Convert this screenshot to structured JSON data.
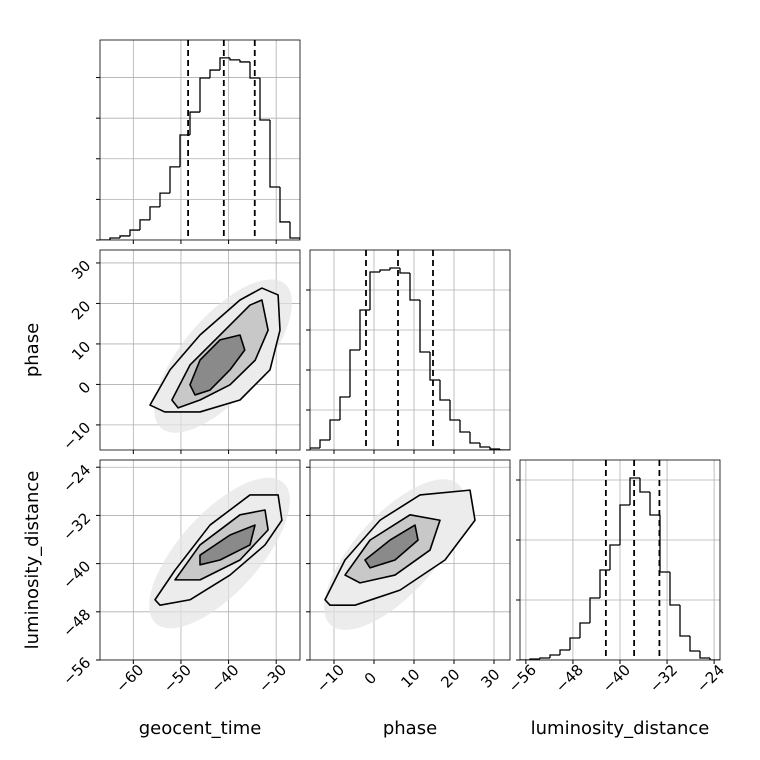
{
  "chart_data": [
    {
      "type": "histogram",
      "xlabel_text": null,
      "bins": [
        -67,
        -64.9,
        -62.8,
        -60.7,
        -58.6,
        -56.5,
        -54.4,
        -52.3,
        -50.2,
        -48.1,
        -46,
        -43.9,
        -41.8,
        -39.7,
        -37.6,
        -35.5,
        -33.4,
        -31.3,
        -29.2,
        -27.1,
        -25
      ],
      "values": [
        0,
        10,
        20,
        49,
        99,
        163,
        231,
        360,
        517,
        630,
        798,
        837,
        897,
        887,
        877,
        798,
        591,
        261,
        89,
        10
      ],
      "quantiles": [
        -48.5,
        -41,
        -34.5
      ],
      "xlim": [
        -67,
        -25
      ],
      "xticks": [
        {
          "value": -60,
          "label": "−60"
        },
        {
          "value": -50,
          "label": "−50"
        },
        {
          "value": -40,
          "label": "−40"
        },
        {
          "value": -30,
          "label": "−30"
        }
      ],
      "ylim": [
        0,
        985
      ],
      "yticks": [
        0,
        200,
        400,
        600,
        800
      ],
      "grid": true,
      "color": "#000000"
    },
    {
      "type": "contour",
      "ylabel": "phase",
      "contours": [
        {
          "x": [
            -56.5,
            -52.3,
            -46,
            -37.6,
            -33,
            -29.6,
            -29.2,
            -31.3,
            -37.6,
            -46,
            -53.4
          ],
          "y": [
            -5.1,
            3.6,
            12.2,
            20.85,
            23.8,
            22.1,
            13.4,
            3.6,
            -3.85,
            -6.8,
            -6.8
          ]
        },
        {
          "x": [
            -51.9,
            -48.1,
            -41.8,
            -35.5,
            -33,
            -31.7,
            -34.4,
            -39.7,
            -46,
            -50.6
          ],
          "y": [
            -3.85,
            4.8,
            12.2,
            19.6,
            20.85,
            13.4,
            6,
            -0.1,
            -3.85,
            -5.8
          ]
        },
        {
          "x": [
            -48.1,
            -46,
            -41.8,
            -37.6,
            -36.6,
            -39.7,
            -43.9,
            -47.05
          ],
          "y": [
            -0.1,
            6,
            11,
            12.2,
            8.5,
            3.6,
            -1.4,
            -2.6
          ]
        }
      ],
      "xlim": [
        -67,
        -25
      ],
      "xticks": [
        {
          "value": -60,
          "label": "−60"
        },
        {
          "value": -50,
          "label": "−50"
        },
        {
          "value": -40,
          "label": "−40"
        },
        {
          "value": -30,
          "label": "−30"
        }
      ],
      "ylim": [
        -16.2,
        33.2
      ],
      "yticks": [
        {
          "value": -10,
          "label": "−10"
        },
        0,
        10,
        20,
        30
      ],
      "grid": true,
      "color": "#000000"
    },
    {
      "type": "histogram",
      "bins": [
        -16,
        -13.5,
        -11,
        -8.5,
        -6,
        -3.5,
        -1,
        1.5,
        4,
        6.5,
        9,
        11.5,
        14,
        16.5,
        19,
        21.5,
        24,
        26.5,
        29,
        31.5,
        34
      ],
      "values": [
        10,
        50,
        150,
        265,
        500,
        700,
        890,
        900,
        910,
        885,
        750,
        490,
        350,
        250,
        150,
        90,
        35,
        15,
        5,
        0
      ],
      "quantiles": [
        -2,
        6,
        14.75
      ],
      "xlim": [
        -16,
        34
      ],
      "xticks": [
        {
          "value": -10,
          "label": "−10"
        },
        0,
        10,
        20,
        30
      ],
      "ylim": [
        0,
        1000
      ],
      "yticks": [
        0,
        200,
        400,
        600,
        800
      ],
      "grid": true,
      "color": "#000000"
    },
    {
      "type": "contour",
      "ylabel": "luminosity_distance",
      "xlabel": "geocent_time",
      "contours": [
        {
          "x": [
            -55.45,
            -51.25,
            -43.9,
            -35.5,
            -29.6,
            -28.8,
            -32.35,
            -39.7,
            -48.1,
            -54.4
          ],
          "y": [
            -46,
            -41.1,
            -33.6,
            -28.6,
            -28.6,
            -32.8,
            -36.9,
            -41.9,
            -46,
            -46.9
          ]
        },
        {
          "x": [
            -51.25,
            -46,
            -37.6,
            -32.35,
            -31.7,
            -37.6,
            -46
          ],
          "y": [
            -42.7,
            -36.9,
            -31.9,
            -31.1,
            -34.4,
            -39.4,
            -42.7
          ]
        },
        {
          "x": [
            -46,
            -39.7,
            -34.45,
            -35.5,
            -41.8,
            -46
          ],
          "y": [
            -38.6,
            -35.25,
            -33.6,
            -36.9,
            -39.4,
            -40.2
          ]
        }
      ],
      "xlim": [
        -67,
        -25
      ],
      "xticks": [
        {
          "value": -60,
          "label": "−60"
        },
        {
          "value": -50,
          "label": "−50"
        },
        {
          "value": -40,
          "label": "−40"
        },
        {
          "value": -30,
          "label": "−30"
        }
      ],
      "ylim": [
        -56,
        -22.8
      ],
      "yticks": [
        {
          "value": -56,
          "label": "−56"
        },
        {
          "value": -48,
          "label": "−48"
        },
        {
          "value": -40,
          "label": "−40"
        },
        {
          "value": -32,
          "label": "−32"
        },
        {
          "value": -24,
          "label": "−24"
        }
      ],
      "grid": true,
      "color": "#000000"
    },
    {
      "type": "contour",
      "xlabel": "phase",
      "contours": [
        {
          "x": [
            -12.25,
            -7.25,
            1.5,
            11.5,
            24,
            25.25,
            17.75,
            6.5,
            -4.75,
            -11
          ],
          "y": [
            -46,
            -39.4,
            -32.8,
            -28.6,
            -27.8,
            -32.8,
            -39.4,
            -44.4,
            -46.9,
            -46.9
          ]
        },
        {
          "x": [
            -7.25,
            -1,
            9,
            16.5,
            14,
            5.25,
            -3.5
          ],
          "y": [
            -41.9,
            -36.1,
            -31.9,
            -32.8,
            -37.75,
            -41.9,
            -43.2
          ]
        },
        {
          "x": [
            -2.25,
            4,
            10.25,
            11,
            5.25,
            -1
          ],
          "y": [
            -39.4,
            -36.1,
            -33.6,
            -36.1,
            -39.4,
            -40.7
          ]
        }
      ],
      "xlim": [
        -16,
        34
      ],
      "xticks": [
        {
          "value": -10,
          "label": "−10"
        },
        0,
        10,
        20,
        30
      ],
      "ylim": [
        -56,
        -22.8
      ],
      "yticks": [
        {
          "value": -56,
          "label": "−56"
        },
        {
          "value": -48,
          "label": "−48"
        },
        {
          "value": -40,
          "label": "−40"
        },
        {
          "value": -32,
          "label": "−32"
        },
        {
          "value": -24,
          "label": "−24"
        }
      ],
      "grid": true,
      "color": "#000000"
    },
    {
      "type": "histogram",
      "xlabel": "luminosity_distance",
      "bins": [
        -57,
        -55.3,
        -53.6,
        -51.9,
        -50.2,
        -48.5,
        -46.8,
        -45.1,
        -43.4,
        -41.7,
        -40,
        -38.3,
        -36.6,
        -34.9,
        -33.2,
        -31.5,
        -29.8,
        -28.1,
        -26.4,
        -24.7,
        -23
      ],
      "values": [
        0,
        5,
        10,
        25,
        50,
        110,
        185,
        310,
        450,
        575,
        775,
        910,
        840,
        725,
        440,
        275,
        120,
        45,
        10,
        0
      ],
      "quantiles": [
        -42.4,
        -37.6,
        -33.3
      ],
      "xlim": [
        -57,
        -23
      ],
      "xticks": [
        {
          "value": -56,
          "label": "−56"
        },
        {
          "value": -48,
          "label": "−48"
        },
        {
          "value": -40,
          "label": "−40"
        },
        {
          "value": -32,
          "label": "−32"
        },
        {
          "value": -24,
          "label": "−24"
        }
      ],
      "ylim": [
        0,
        1000
      ],
      "yticks": [
        0,
        300,
        600,
        900
      ],
      "grid": true,
      "color": "#000000"
    }
  ]
}
